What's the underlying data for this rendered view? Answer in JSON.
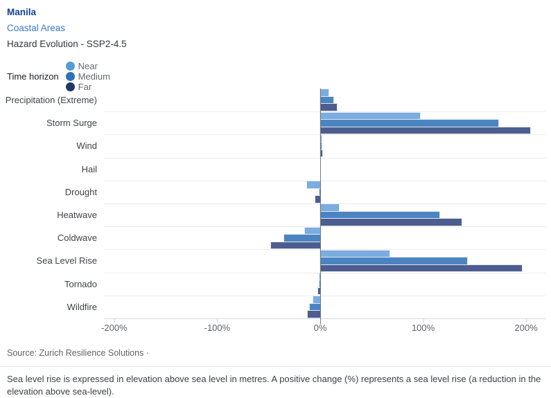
{
  "header": {
    "city": "Manila",
    "area": "Coastal Areas",
    "subtitle": "Hazard Evolution - SSP2-4.5"
  },
  "legend": {
    "label": "Time horizon",
    "items": [
      {
        "label": "Near",
        "color": "#569bd7"
      },
      {
        "label": "Medium",
        "color": "#2d72b8"
      },
      {
        "label": "Far",
        "color": "#1f3766"
      }
    ]
  },
  "chart_data": {
    "type": "bar",
    "orientation": "horizontal",
    "title": "Hazard Evolution - SSP2-4.5",
    "categories": [
      "Precipitation (Extreme)",
      "Storm Surge",
      "Wind",
      "Hail",
      "Drought",
      "Heatwave",
      "Coldwave",
      "Sea Level Rise",
      "Tornado",
      "Wildfire"
    ],
    "series": [
      {
        "name": "Near",
        "color": "#7bade0",
        "values": [
          8,
          97,
          1,
          0,
          -13,
          18,
          -15,
          67,
          -1,
          -7
        ]
      },
      {
        "name": "Medium",
        "color": "#4a85c2",
        "values": [
          13,
          173,
          1,
          0,
          -1,
          116,
          -35,
          143,
          -1,
          -10
        ]
      },
      {
        "name": "Far",
        "color": "#4e5d90",
        "values": [
          16,
          204,
          2,
          0,
          -5,
          137,
          -48,
          196,
          -2,
          -12
        ]
      }
    ],
    "x_ticks": [
      {
        "value": -200,
        "label": "-200%"
      },
      {
        "value": -100,
        "label": "-100%"
      },
      {
        "value": 0,
        "label": "0%"
      },
      {
        "value": 100,
        "label": "100%"
      },
      {
        "value": 200,
        "label": "200%"
      }
    ],
    "xlim": [
      -210,
      210
    ],
    "unit": "%",
    "legend_position": "top",
    "grid": "row-separators"
  },
  "footer": {
    "source": "Source: Zurich Resilience Solutions ·",
    "note": "Sea level rise is expressed in elevation above sea level in metres. A positive change (%) represents a sea level rise (a reduction in the elevation above sea-level)."
  }
}
